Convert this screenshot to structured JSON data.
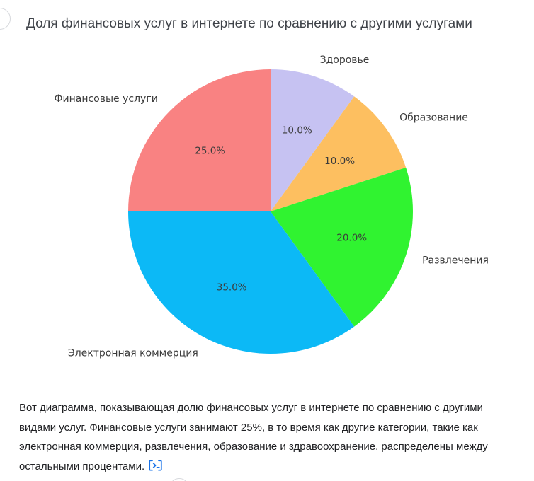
{
  "page": {
    "title": "Доля финансовых услуг в интернете по сравнению с другими услугами"
  },
  "chart_data": {
    "type": "pie",
    "title": "Доля финансовых услуг в интернете по сравнению с другими услугами",
    "start_angle": "12-oclock",
    "direction": "clockwise",
    "legend": "none",
    "slices": [
      {
        "label": "Здоровье",
        "value": 10.0,
        "pct_label": "10.0%",
        "color": "#c6c2f2"
      },
      {
        "label": "Образование",
        "value": 10.0,
        "pct_label": "10.0%",
        "color": "#fdbf60"
      },
      {
        "label": "Развлечения",
        "value": 20.0,
        "pct_label": "20.0%",
        "color": "#30f330"
      },
      {
        "label": "Электронная коммерция",
        "value": 35.0,
        "pct_label": "35.0%",
        "color": "#0cb9f6"
      },
      {
        "label": "Финансовые услуги",
        "value": 25.0,
        "pct_label": "25.0%",
        "color": "#f98282"
      }
    ],
    "label_color": "#3b3b3b"
  },
  "answer": {
    "text": "Вот диаграмма, показывающая долю финансовых услуг в интернете по сравнению с другими видами услуг. Финансовые услуги занимают 25%, в то время как другие категории, такие как электронная коммерция, развлечения, образование и здравоохранение, распределены между остальными процентами.",
    "code_chip": "terminal-code-icon"
  },
  "colors": {
    "accent_blue": "#1a73e8",
    "title_color": "#3f4349",
    "body_color": "#202124"
  }
}
